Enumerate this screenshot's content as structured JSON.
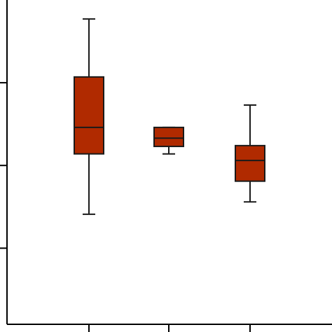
{
  "chart_data": {
    "type": "box",
    "title": "",
    "xlabel": "",
    "ylabel": "",
    "categories": [
      "",
      "",
      ""
    ],
    "series": [
      {
        "boxes": [
          {
            "whisker_low": 0.41,
            "q1": 1.14,
            "median": 1.46,
            "q3": 2.07,
            "whisker_high": 2.77
          },
          {
            "whisker_low": 1.14,
            "q1": 1.23,
            "median": 1.33,
            "q3": 1.46,
            "whisker_high": 1.46
          },
          {
            "whisker_low": 0.56,
            "q1": 0.81,
            "median": 1.06,
            "q3": 1.24,
            "whisker_high": 1.73
          }
        ]
      }
    ],
    "ylim": [
      -0.92,
      3.0
    ],
    "y_ticks": [
      0,
      1,
      2
    ],
    "box_color": "#b02a00",
    "edge_color": "#1a1a1a",
    "axis_color": "#000000"
  }
}
